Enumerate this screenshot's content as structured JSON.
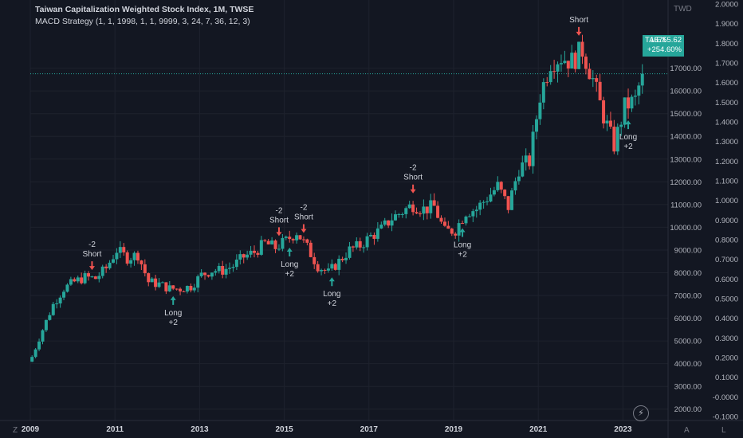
{
  "header": {
    "title": "Taiwan Capitalization Weighted Stock Index, 1M, TWSE",
    "strategy": "MACD Strategy (1, 1, 1998, 1, 1, 9999, 3, 24, 7, 36, 12, 3)"
  },
  "price_tag": {
    "symbol": "TAIEX",
    "price": "16755.62",
    "change": "+254.60%"
  },
  "corner_labels": {
    "currency": "TWD",
    "bottom_left": "Z",
    "auto": "A",
    "log": "L"
  },
  "icons": [
    "lightning-icon"
  ],
  "colors": {
    "background": "#131722",
    "up": "#26a69a",
    "down": "#ef5350",
    "text": "#d1d4dc",
    "axis_text": "#787b86"
  },
  "chart_data": {
    "type": "candlestick",
    "x_tick_labels": [
      "2009",
      "2011",
      "2013",
      "2015",
      "2017",
      "2019",
      "2021",
      "2023"
    ],
    "left_axis": {
      "range": [
        1500,
        20000
      ],
      "tick_labels": [
        "2000.00",
        "3000.00",
        "4000.00",
        "5000.00",
        "6000.00",
        "7000.00",
        "8000.00",
        "9000.00",
        "10000.00",
        "11000.00",
        "12000.00",
        "13000.00",
        "14000.00",
        "15000.00",
        "16000.00",
        "17000.00"
      ]
    },
    "right_axis": {
      "range": [
        -0.12,
        2.02
      ],
      "tick_labels": [
        "-0.1000",
        "-0.0000",
        "0.1000",
        "0.2000",
        "0.3000",
        "0.4000",
        "0.5000",
        "0.6000",
        "0.7000",
        "0.8000",
        "0.9000",
        "1.0000",
        "1.1000",
        "1.2000",
        "1.3000",
        "1.4000",
        "1.5000",
        "1.6000",
        "1.7000",
        "1.8000",
        "1.9000",
        "2.0000"
      ]
    },
    "close_approx": [
      [
        "2009-01",
        4300
      ],
      [
        "2009-04",
        5500
      ],
      [
        "2009-07",
        6600
      ],
      [
        "2009-10",
        7300
      ],
      [
        "2010-01",
        7600
      ],
      [
        "2010-04",
        7800
      ],
      [
        "2010-07",
        7750
      ],
      [
        "2010-10",
        8200
      ],
      [
        "2011-01",
        9000
      ],
      [
        "2011-04",
        8650
      ],
      [
        "2011-07",
        8800
      ],
      [
        "2011-10",
        7600
      ],
      [
        "2012-01",
        7500
      ],
      [
        "2012-04",
        7300
      ],
      [
        "2012-07",
        7300
      ],
      [
        "2012-10",
        7400
      ],
      [
        "2013-01",
        7900
      ],
      [
        "2013-04",
        8100
      ],
      [
        "2013-07",
        8100
      ],
      [
        "2013-10",
        8300
      ],
      [
        "2014-01",
        8700
      ],
      [
        "2014-04",
        8900
      ],
      [
        "2014-07",
        9300
      ],
      [
        "2014-10",
        9100
      ],
      [
        "2015-01",
        9400
      ],
      [
        "2015-04",
        9800
      ],
      [
        "2015-07",
        9100
      ],
      [
        "2015-10",
        8300
      ],
      [
        "2016-01",
        8000
      ],
      [
        "2016-04",
        8500
      ],
      [
        "2016-07",
        9000
      ],
      [
        "2016-10",
        9200
      ],
      [
        "2017-01",
        9600
      ],
      [
        "2017-04",
        9900
      ],
      [
        "2017-07",
        10400
      ],
      [
        "2017-10",
        10700
      ],
      [
        "2018-01",
        11000
      ],
      [
        "2018-04",
        10800
      ],
      [
        "2018-07",
        10900
      ],
      [
        "2018-10",
        9800
      ],
      [
        "2019-01",
        9900
      ],
      [
        "2019-04",
        10700
      ],
      [
        "2019-07",
        10800
      ],
      [
        "2019-10",
        11300
      ],
      [
        "2020-01",
        11800
      ],
      [
        "2020-04",
        10900
      ],
      [
        "2020-07",
        12600
      ],
      [
        "2020-10",
        12900
      ],
      [
        "2021-01",
        15800
      ],
      [
        "2021-04",
        17300
      ],
      [
        "2021-07",
        17500
      ],
      [
        "2021-10",
        17300
      ],
      [
        "2022-01",
        17800
      ],
      [
        "2022-04",
        16500
      ],
      [
        "2022-07",
        14900
      ],
      [
        "2022-10",
        13600
      ],
      [
        "2023-01",
        15300
      ],
      [
        "2023-04",
        15600
      ],
      [
        "2023-06",
        16755.62
      ]
    ],
    "signals": [
      {
        "date": "2010-06",
        "type": "short",
        "label": "Short",
        "qty": "-2"
      },
      {
        "date": "2012-05",
        "type": "long",
        "label": "Long",
        "qty": "+2"
      },
      {
        "date": "2014-11",
        "type": "short",
        "label": "Short",
        "qty": "-2"
      },
      {
        "date": "2015-02",
        "type": "long",
        "label": "Long",
        "qty": "+2"
      },
      {
        "date": "2015-06",
        "type": "short",
        "label": "Short",
        "qty": "-2"
      },
      {
        "date": "2016-02",
        "type": "long",
        "label": "Long",
        "qty": "+2"
      },
      {
        "date": "2018-01",
        "type": "short",
        "label": "Short",
        "qty": "-2"
      },
      {
        "date": "2019-03",
        "type": "long",
        "label": "Long",
        "qty": "+2"
      },
      {
        "date": "2021-12",
        "type": "short",
        "label": "Short",
        "qty": ""
      },
      {
        "date": "2023-02",
        "type": "long",
        "label": "Long",
        "qty": "+2"
      }
    ]
  }
}
